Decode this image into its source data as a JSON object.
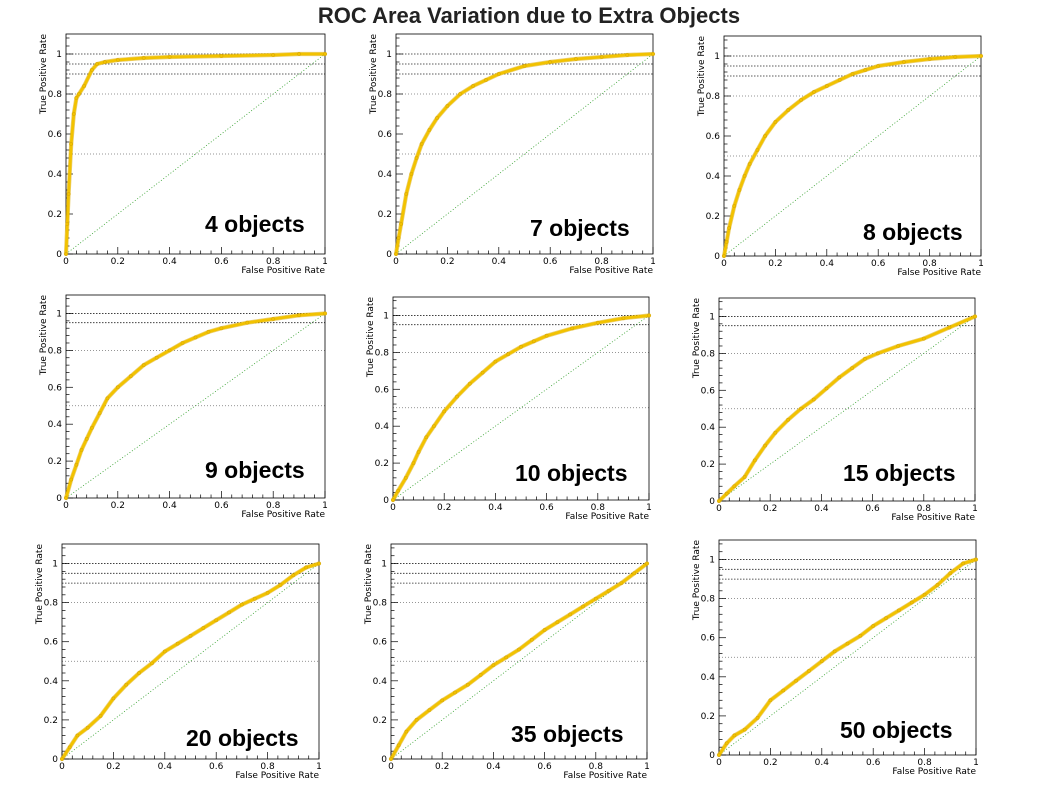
{
  "title": "ROC Area Variation due to Extra Objects",
  "colors": {
    "curve": "#f2c200",
    "curve_edge": "#d9a800",
    "diagonal": "#33a02c",
    "reference": "#000000",
    "frame": "#000000"
  },
  "chart_data": [
    {
      "type": "line",
      "label": "4 objects",
      "xlabel": "False Positive Rate",
      "ylabel": "True Positive Rate",
      "xlim": [
        0,
        1
      ],
      "ylim": [
        0,
        1.1
      ],
      "xticks": [
        "0",
        "0.2",
        "0.4",
        "0.6",
        "0.8",
        "1"
      ],
      "yticks": [
        "0",
        "0.2",
        "0.4",
        "0.6",
        "0.8",
        "1"
      ],
      "reference_lines": [
        1.0,
        0.95,
        0.9,
        0.8,
        0.5
      ],
      "diagonal": true,
      "series": [
        {
          "x": [
            0,
            0.005,
            0.01,
            0.02,
            0.03,
            0.04,
            0.05,
            0.07,
            0.1,
            0.12,
            0.15,
            0.2,
            0.3,
            0.4,
            0.6,
            0.8,
            0.9,
            1.0
          ],
          "y": [
            0,
            0.15,
            0.3,
            0.55,
            0.7,
            0.78,
            0.8,
            0.84,
            0.92,
            0.95,
            0.96,
            0.97,
            0.98,
            0.985,
            0.99,
            0.995,
            1.0,
            1.0
          ]
        }
      ]
    },
    {
      "type": "line",
      "label": "7 objects",
      "xlabel": "False Positive Rate",
      "ylabel": "True Positive Rate",
      "xlim": [
        0,
        1
      ],
      "ylim": [
        0,
        1.1
      ],
      "xticks": [
        "0",
        "0.2",
        "0.4",
        "0.6",
        "0.8",
        "1"
      ],
      "yticks": [
        "0",
        "0.2",
        "0.4",
        "0.6",
        "0.8",
        "1"
      ],
      "reference_lines": [
        1.0,
        0.95,
        0.9,
        0.8,
        0.5
      ],
      "diagonal": true,
      "series": [
        {
          "x": [
            0,
            0.01,
            0.02,
            0.04,
            0.06,
            0.08,
            0.1,
            0.13,
            0.16,
            0.2,
            0.25,
            0.3,
            0.35,
            0.4,
            0.5,
            0.6,
            0.7,
            0.8,
            0.9,
            1.0
          ],
          "y": [
            0,
            0.08,
            0.15,
            0.3,
            0.4,
            0.48,
            0.55,
            0.62,
            0.68,
            0.74,
            0.8,
            0.84,
            0.87,
            0.9,
            0.94,
            0.96,
            0.975,
            0.985,
            0.995,
            1.0
          ]
        }
      ]
    },
    {
      "type": "line",
      "label": "8 objects",
      "xlabel": "False Positive Rate",
      "ylabel": "True Positive Rate",
      "xlim": [
        0,
        1
      ],
      "ylim": [
        0,
        1.1
      ],
      "xticks": [
        "0",
        "0.2",
        "0.4",
        "0.6",
        "0.8",
        "1"
      ],
      "yticks": [
        "0",
        "0.2",
        "0.4",
        "0.6",
        "0.8",
        "1"
      ],
      "reference_lines": [
        1.0,
        0.95,
        0.9,
        0.8,
        0.5
      ],
      "diagonal": true,
      "series": [
        {
          "x": [
            0,
            0.01,
            0.02,
            0.04,
            0.06,
            0.08,
            0.1,
            0.13,
            0.16,
            0.2,
            0.25,
            0.3,
            0.35,
            0.4,
            0.45,
            0.5,
            0.55,
            0.6,
            0.7,
            0.8,
            0.9,
            1.0
          ],
          "y": [
            0,
            0.07,
            0.14,
            0.25,
            0.33,
            0.4,
            0.46,
            0.53,
            0.6,
            0.67,
            0.73,
            0.78,
            0.82,
            0.85,
            0.88,
            0.91,
            0.93,
            0.95,
            0.97,
            0.985,
            0.995,
            1.0
          ]
        }
      ]
    },
    {
      "type": "line",
      "label": "9 objects",
      "xlabel": "False Positive Rate",
      "ylabel": "True Positive Rate",
      "xlim": [
        0,
        1
      ],
      "ylim": [
        0,
        1.1
      ],
      "xticks": [
        "0",
        "0.2",
        "0.4",
        "0.6",
        "0.8",
        "1"
      ],
      "yticks": [
        "0",
        "0.2",
        "0.4",
        "0.6",
        "0.8",
        "1"
      ],
      "reference_lines": [
        1.0,
        0.95,
        0.8,
        0.5
      ],
      "diagonal": true,
      "series": [
        {
          "x": [
            0,
            0.02,
            0.04,
            0.06,
            0.08,
            0.1,
            0.13,
            0.16,
            0.2,
            0.25,
            0.3,
            0.35,
            0.4,
            0.45,
            0.5,
            0.55,
            0.6,
            0.7,
            0.8,
            0.9,
            1.0
          ],
          "y": [
            0,
            0.1,
            0.18,
            0.26,
            0.32,
            0.38,
            0.46,
            0.54,
            0.6,
            0.66,
            0.72,
            0.76,
            0.8,
            0.84,
            0.87,
            0.9,
            0.92,
            0.95,
            0.97,
            0.99,
            1.0
          ]
        }
      ]
    },
    {
      "type": "line",
      "label": "10 objects",
      "xlabel": "False Positive Rate",
      "ylabel": "True Positive Rate",
      "xlim": [
        0,
        1
      ],
      "ylim": [
        0,
        1.1
      ],
      "xticks": [
        "0",
        "0.2",
        "0.4",
        "0.6",
        "0.8",
        "1"
      ],
      "yticks": [
        "0",
        "0.2",
        "0.4",
        "0.6",
        "0.8",
        "1"
      ],
      "reference_lines": [
        1.0,
        0.95,
        0.8,
        0.5
      ],
      "diagonal": true,
      "series": [
        {
          "x": [
            0,
            0.02,
            0.05,
            0.08,
            0.1,
            0.13,
            0.16,
            0.2,
            0.25,
            0.3,
            0.35,
            0.4,
            0.45,
            0.5,
            0.55,
            0.6,
            0.7,
            0.8,
            0.9,
            1.0
          ],
          "y": [
            0,
            0.05,
            0.12,
            0.2,
            0.26,
            0.34,
            0.4,
            0.48,
            0.56,
            0.63,
            0.69,
            0.75,
            0.79,
            0.83,
            0.86,
            0.89,
            0.93,
            0.96,
            0.985,
            1.0
          ]
        }
      ]
    },
    {
      "type": "line",
      "label": "15 objects",
      "xlabel": "False Positive Rate",
      "ylabel": "True Positive Rate",
      "xlim": [
        0,
        1
      ],
      "ylim": [
        0,
        1.1
      ],
      "xticks": [
        "0",
        "0.2",
        "0.4",
        "0.6",
        "0.8",
        "1"
      ],
      "yticks": [
        "0",
        "0.2",
        "0.4",
        "0.6",
        "0.8",
        "1"
      ],
      "reference_lines": [
        1.0,
        0.95,
        0.8,
        0.5
      ],
      "diagonal": true,
      "series": [
        {
          "x": [
            0,
            0.03,
            0.06,
            0.1,
            0.14,
            0.18,
            0.22,
            0.27,
            0.32,
            0.37,
            0.42,
            0.47,
            0.52,
            0.57,
            0.62,
            0.7,
            0.8,
            0.9,
            1.0
          ],
          "y": [
            0,
            0.04,
            0.08,
            0.13,
            0.22,
            0.3,
            0.37,
            0.44,
            0.5,
            0.55,
            0.61,
            0.67,
            0.72,
            0.77,
            0.8,
            0.84,
            0.88,
            0.94,
            1.0
          ]
        }
      ]
    },
    {
      "type": "line",
      "label": "20 objects",
      "xlabel": "False Positive Rate",
      "ylabel": "True Positive Rate",
      "xlim": [
        0,
        1
      ],
      "ylim": [
        0,
        1.1
      ],
      "xticks": [
        "0",
        "0.2",
        "0.4",
        "0.6",
        "0.8",
        "1"
      ],
      "yticks": [
        "0",
        "0.2",
        "0.4",
        "0.6",
        "0.8",
        "1"
      ],
      "reference_lines": [
        1.0,
        0.95,
        0.9,
        0.8,
        0.5
      ],
      "diagonal": true,
      "series": [
        {
          "x": [
            0,
            0.03,
            0.06,
            0.1,
            0.15,
            0.2,
            0.25,
            0.3,
            0.35,
            0.4,
            0.45,
            0.5,
            0.55,
            0.6,
            0.65,
            0.7,
            0.75,
            0.8,
            0.85,
            0.9,
            0.95,
            1.0
          ],
          "y": [
            0,
            0.06,
            0.12,
            0.16,
            0.22,
            0.31,
            0.38,
            0.44,
            0.49,
            0.55,
            0.59,
            0.63,
            0.67,
            0.71,
            0.75,
            0.79,
            0.82,
            0.85,
            0.89,
            0.94,
            0.98,
            1.0
          ]
        }
      ]
    },
    {
      "type": "line",
      "label": "35 objects",
      "xlabel": "False Positive Rate",
      "ylabel": "True Positive Rate",
      "xlim": [
        0,
        1
      ],
      "ylim": [
        0,
        1.1
      ],
      "xticks": [
        "0",
        "0.2",
        "0.4",
        "0.6",
        "0.8",
        "1"
      ],
      "yticks": [
        "0",
        "0.2",
        "0.4",
        "0.6",
        "0.8",
        "1"
      ],
      "reference_lines": [
        1.0,
        0.95,
        0.9,
        0.8,
        0.5
      ],
      "diagonal": true,
      "series": [
        {
          "x": [
            0,
            0.03,
            0.06,
            0.1,
            0.15,
            0.2,
            0.25,
            0.3,
            0.35,
            0.4,
            0.45,
            0.5,
            0.55,
            0.6,
            0.65,
            0.7,
            0.75,
            0.8,
            0.85,
            0.9,
            0.95,
            1.0
          ],
          "y": [
            0,
            0.07,
            0.14,
            0.2,
            0.25,
            0.3,
            0.34,
            0.38,
            0.43,
            0.48,
            0.52,
            0.56,
            0.61,
            0.66,
            0.7,
            0.74,
            0.78,
            0.82,
            0.86,
            0.9,
            0.95,
            1.0
          ]
        }
      ]
    },
    {
      "type": "line",
      "label": "50 objects",
      "xlabel": "False Positive Rate",
      "ylabel": "True Positive Rate",
      "xlim": [
        0,
        1
      ],
      "ylim": [
        0,
        1.1
      ],
      "xticks": [
        "0",
        "0.2",
        "0.4",
        "0.6",
        "0.8",
        "1"
      ],
      "yticks": [
        "0",
        "0.2",
        "0.4",
        "0.6",
        "0.8",
        "1"
      ],
      "reference_lines": [
        1.0,
        0.95,
        0.9,
        0.8,
        0.5
      ],
      "diagonal": true,
      "series": [
        {
          "x": [
            0,
            0.03,
            0.06,
            0.1,
            0.15,
            0.2,
            0.25,
            0.3,
            0.35,
            0.4,
            0.45,
            0.5,
            0.55,
            0.6,
            0.65,
            0.7,
            0.75,
            0.8,
            0.85,
            0.9,
            0.95,
            1.0
          ],
          "y": [
            0,
            0.06,
            0.1,
            0.13,
            0.19,
            0.28,
            0.33,
            0.38,
            0.43,
            0.48,
            0.53,
            0.57,
            0.61,
            0.66,
            0.7,
            0.74,
            0.78,
            0.82,
            0.87,
            0.93,
            0.98,
            1.0
          ]
        }
      ]
    }
  ]
}
